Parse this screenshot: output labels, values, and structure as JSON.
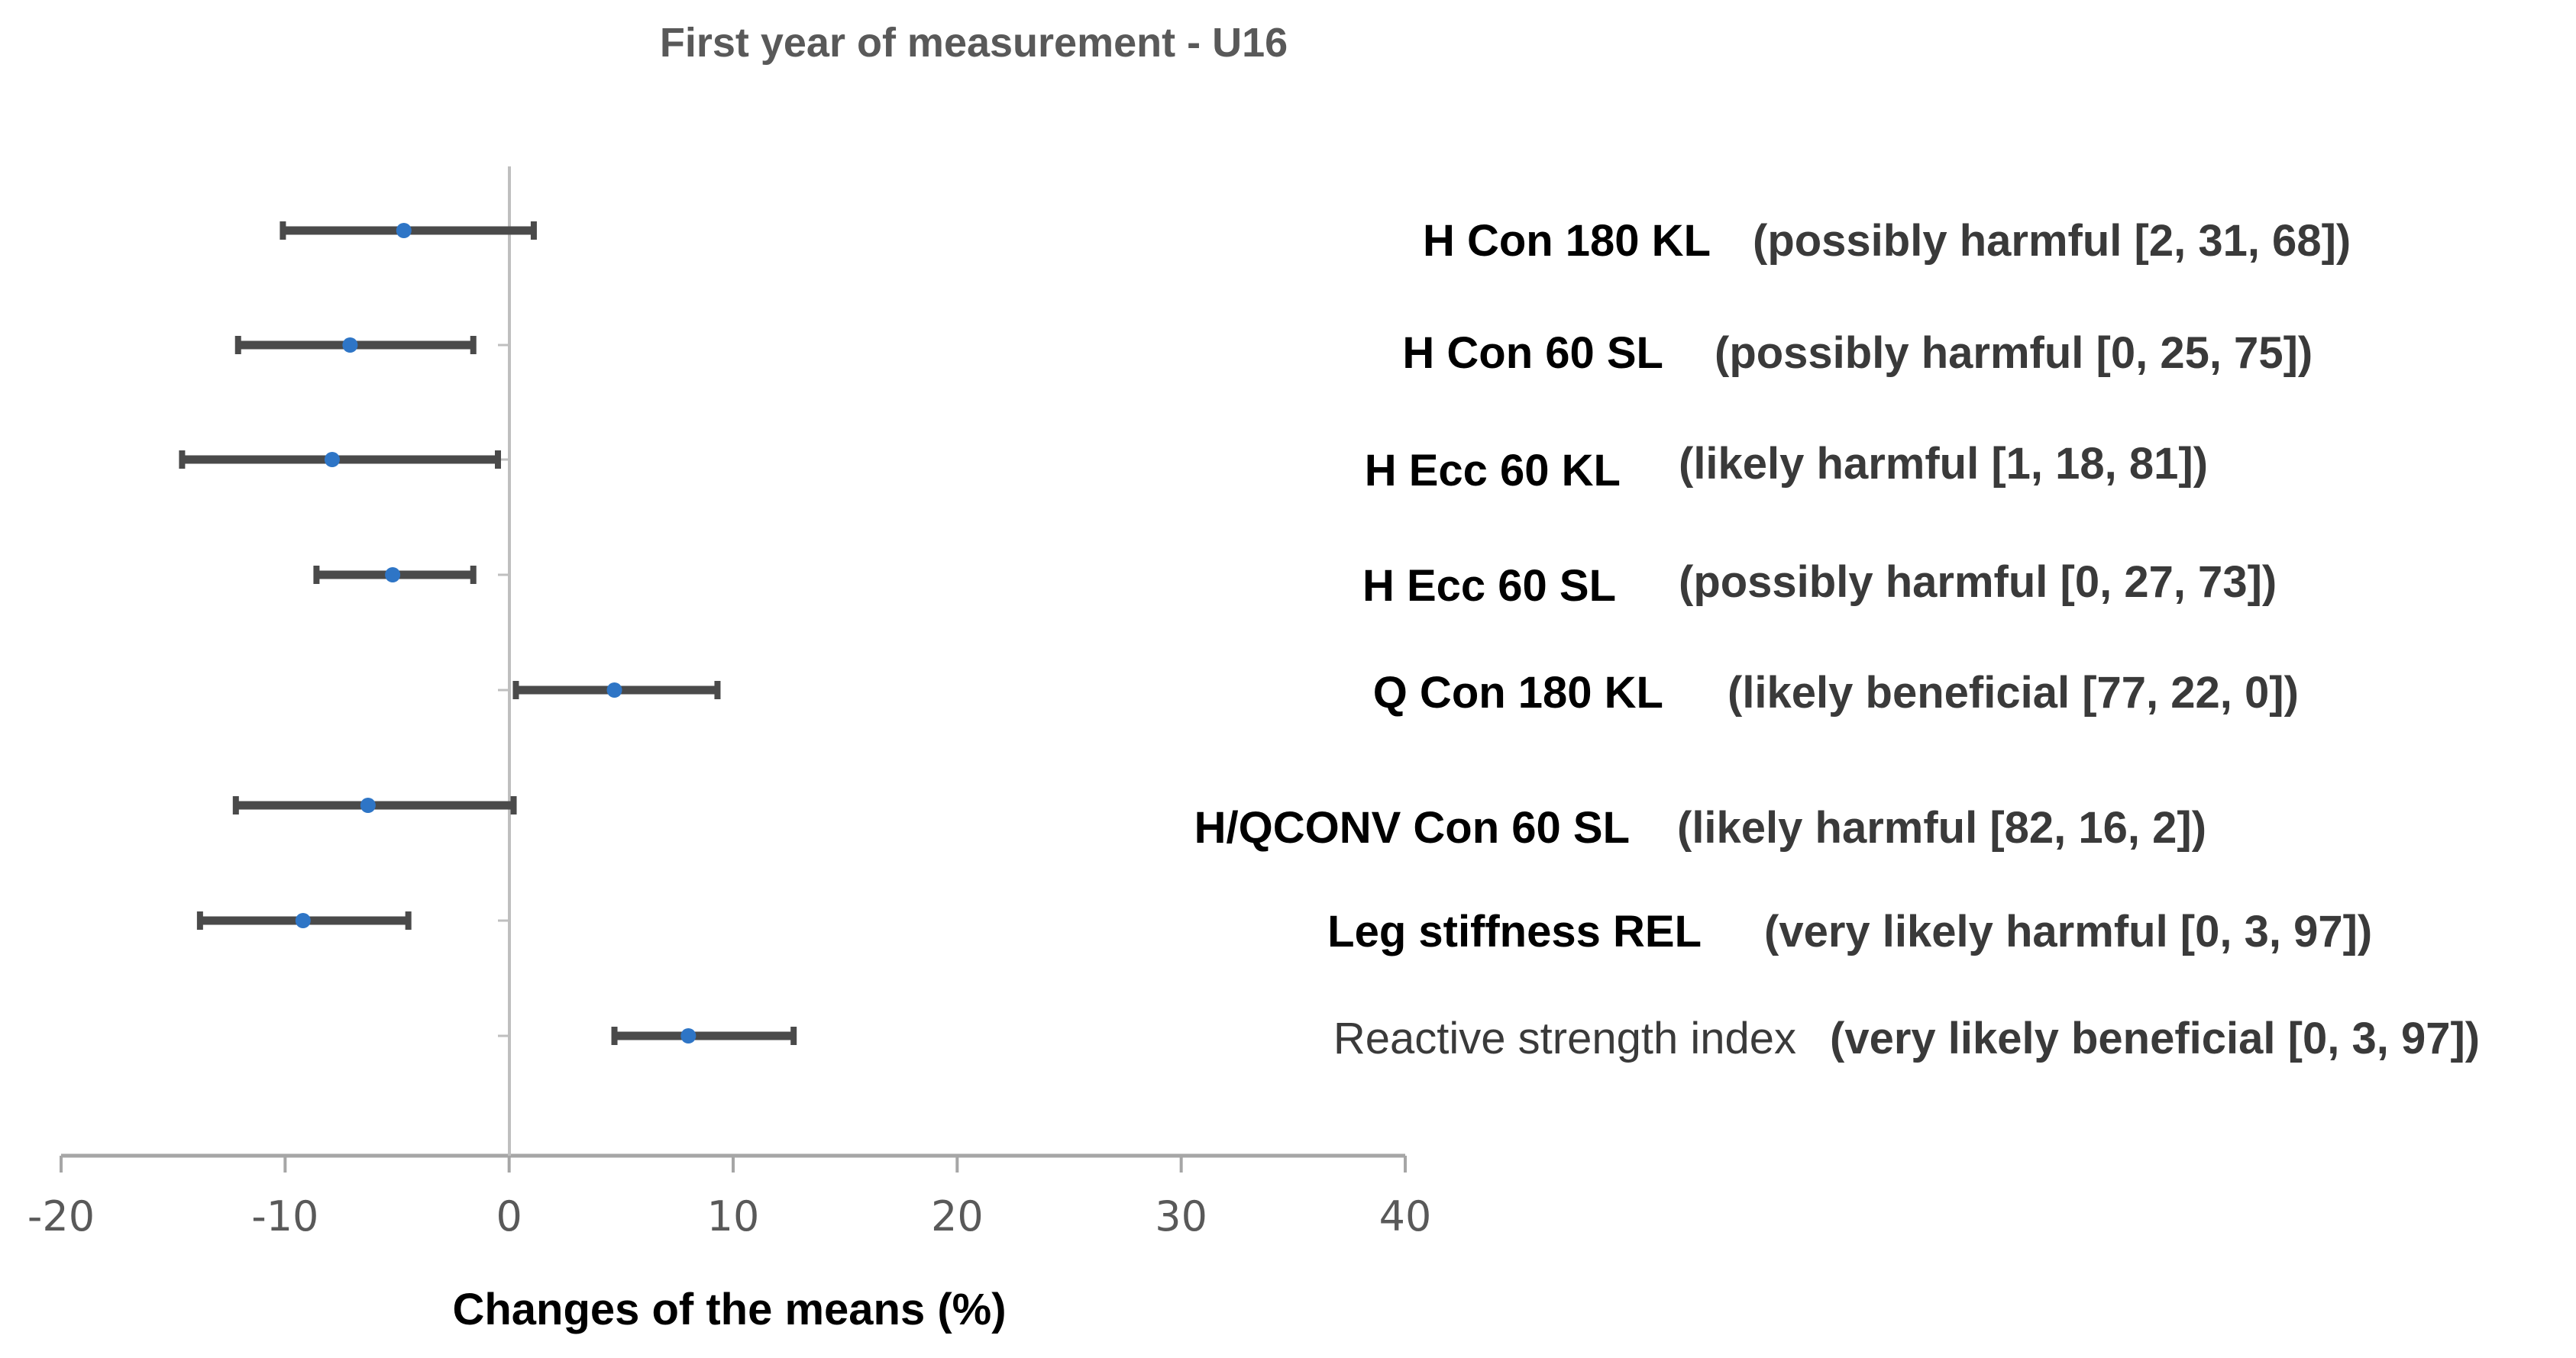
{
  "chart_data": {
    "type": "forest",
    "title": "First year of measurement - U16",
    "xlabel": "Changes of the means (%)",
    "xlim": [
      -20,
      40
    ],
    "xticks": [
      "-20",
      "-10",
      "0",
      "10",
      "20",
      "30",
      "40"
    ],
    "xtick_values": [
      -20,
      -10,
      0,
      10,
      20,
      30,
      40
    ],
    "marker_color": "#2e75c6",
    "bar_color": "#4a4a4a",
    "axis_color": "#a6a6a6",
    "series": [
      {
        "label": "H Con 180 KL",
        "inference": "(possibly harmful [2, 31, 68])",
        "mean": -4.7,
        "lower": -10.1,
        "upper": 1.1
      },
      {
        "label": "H Con 60 SL",
        "inference": "(possibly harmful [0, 25, 75])",
        "mean": -7.1,
        "lower": -12.1,
        "upper": -1.6
      },
      {
        "label": "H Ecc 60 KL",
        "inference": "(likely harmful [1, 18, 81])",
        "mean": -7.9,
        "lower": -14.6,
        "upper": -0.5
      },
      {
        "label": "H Ecc 60 SL",
        "inference": "(possibly harmful [0, 27, 73])",
        "mean": -5.2,
        "lower": -8.6,
        "upper": -1.6
      },
      {
        "label": "Q Con 180 KL",
        "inference": "(likely beneficial [77, 22, 0])",
        "mean": 4.7,
        "lower": 0.3,
        "upper": 9.3
      },
      {
        "label": "H/QCONV Con 60 SL",
        "inference": "(likely harmful [82, 16, 2])",
        "mean": -6.3,
        "lower": -12.2,
        "upper": 0.2
      },
      {
        "label": "Leg stiffness REL",
        "inference": "(very likely harmful [0, 3, 97])",
        "mean": -9.2,
        "lower": -13.8,
        "upper": -4.5
      },
      {
        "label": "Reactive strength index",
        "inference": "(very likely beneficial [0, 3, 97])",
        "mean": 8.0,
        "lower": 4.7,
        "upper": 12.7
      }
    ]
  }
}
